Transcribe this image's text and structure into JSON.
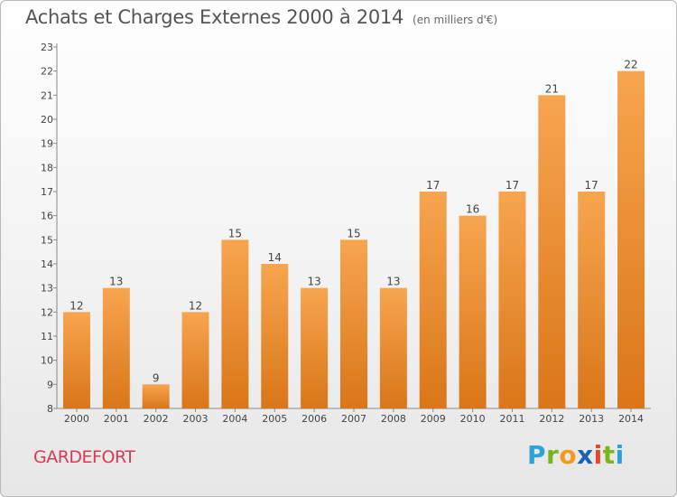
{
  "title": "Achats et Charges Externes 2000 à 2014",
  "subtitle": "(en milliers d'€)",
  "commune": "GARDEFORT",
  "brand": {
    "letters": [
      "P",
      "r",
      "o",
      "x",
      "i",
      "t",
      "i"
    ],
    "colors": [
      "#2aa3d8",
      "#7ab51d",
      "#f29a1c",
      "#1a62b3",
      "#e2482b",
      "#7ab51d",
      "#2aa3d8"
    ]
  },
  "colors": {
    "bar_top": "#f7a54f",
    "bar_bottom": "#d97618",
    "axis": "#888888",
    "text": "#444444"
  },
  "chart_data": {
    "type": "bar",
    "categories": [
      "2000",
      "2001",
      "2002",
      "2003",
      "2004",
      "2005",
      "2006",
      "2007",
      "2008",
      "2009",
      "2010",
      "2011",
      "2012",
      "2013",
      "2014"
    ],
    "values": [
      12,
      13,
      9,
      12,
      15,
      14,
      13,
      15,
      13,
      17,
      16,
      17,
      21,
      17,
      22
    ],
    "ylim": [
      8,
      23
    ],
    "yticks": [
      8,
      9,
      10,
      11,
      12,
      13,
      14,
      15,
      16,
      17,
      18,
      19,
      20,
      21,
      22,
      23
    ],
    "grid": false,
    "data_labels": true
  }
}
